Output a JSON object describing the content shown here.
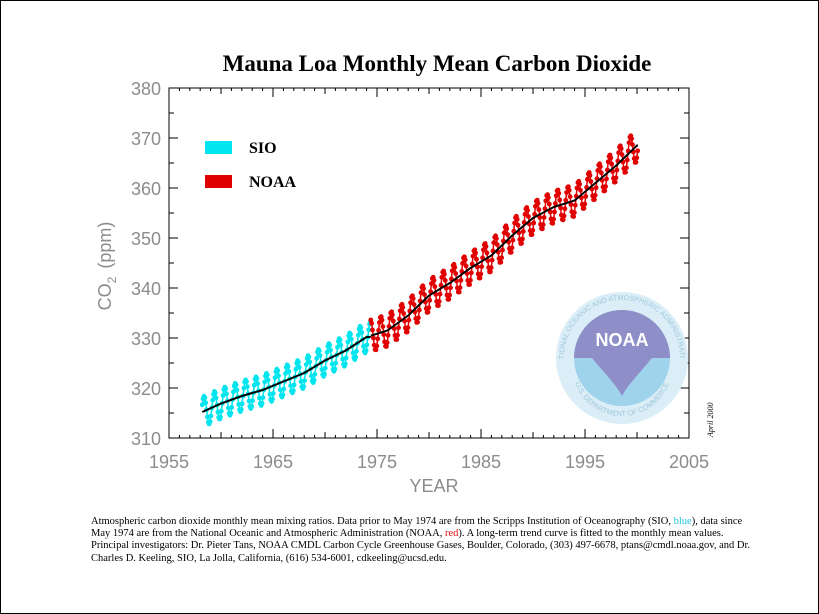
{
  "chart_data": {
    "type": "line",
    "title": "Mauna Loa Monthly Mean Carbon Dioxide",
    "xlabel": "YEAR",
    "ylabel_main": "CO",
    "ylabel_sub": "2",
    "ylabel_unit": "(ppm)",
    "xlim": [
      1955,
      2005
    ],
    "ylim": [
      310,
      380
    ],
    "xticks": [
      1955,
      1965,
      1975,
      1985,
      1995,
      2005
    ],
    "yticks": [
      310,
      320,
      330,
      340,
      350,
      360,
      370,
      380
    ],
    "grid": false,
    "legend_placement": "top-left",
    "series": [
      {
        "name": "SIO",
        "color": "#00e5ee",
        "x_range": [
          1958.2,
          1974.4
        ],
        "trend_points": [
          [
            1958,
            315.0
          ],
          [
            1960,
            316.9
          ],
          [
            1962,
            318.4
          ],
          [
            1964,
            319.6
          ],
          [
            1966,
            321.3
          ],
          [
            1968,
            323.0
          ],
          [
            1970,
            325.5
          ],
          [
            1972,
            327.5
          ],
          [
            1974,
            330.2
          ]
        ],
        "seasonal_amplitude": 3.0
      },
      {
        "name": "NOAA",
        "color": "#e00000",
        "x_range": [
          1974.4,
          2000.1
        ],
        "trend_points": [
          [
            1974,
            330.2
          ],
          [
            1976,
            331.5
          ],
          [
            1978,
            334.5
          ],
          [
            1980,
            338.5
          ],
          [
            1982,
            341.0
          ],
          [
            1984,
            344.0
          ],
          [
            1986,
            346.5
          ],
          [
            1988,
            350.5
          ],
          [
            1990,
            354.0
          ],
          [
            1992,
            356.2
          ],
          [
            1994,
            357.5
          ],
          [
            1996,
            361.0
          ],
          [
            1998,
            364.5
          ],
          [
            2000,
            368.5
          ]
        ],
        "seasonal_amplitude": 3.2
      }
    ],
    "trend_line_color": "#000000",
    "side_annotation": "April 2000"
  },
  "logo": {
    "name": "noaa-logo",
    "center_text": "NOAA",
    "ring_text": "NATIONAL OCEANIC AND ATMOSPHERIC ADMINISTRATION",
    "bottom_text": "U.S. DEPARTMENT OF COMMERCE",
    "color_light": "#a8d8ee",
    "color_dark": "#8c8cc8"
  },
  "caption": {
    "part1": "Atmospheric carbon dioxide monthly mean mixing ratios.  Data prior to May 1974 are from the Scripps Institution of Oceanography (SIO, ",
    "sio_word": "blue",
    "part2": "), data since May 1974 are from the National Oceanic and Atmospheric Administration (NOAA, ",
    "noaa_word": "red",
    "part3": ").  A long-term trend curve is fitted to the monthly mean values.   Principal investigators:  Dr. Pieter Tans, NOAA CMDL Carbon Cycle Greenhouse Gases, Boulder, Colorado, (303) 497-6678, ptans@cmdl.noaa.gov, and Dr. Charles D. Keeling, SIO, La Jolla, California, (616) 534-6001, cdkeeling@ucsd.edu."
  }
}
